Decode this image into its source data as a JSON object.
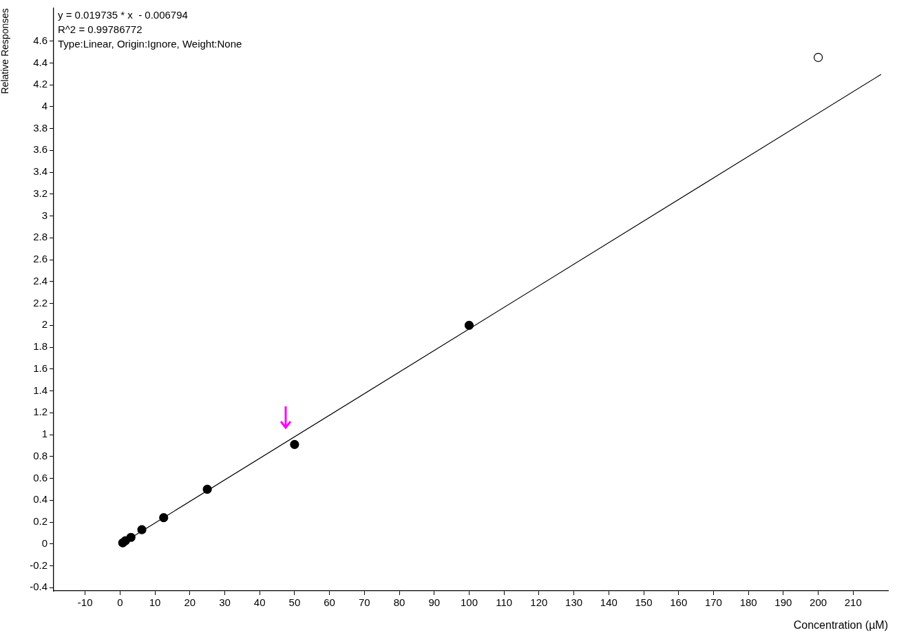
{
  "chart_data": {
    "type": "scatter",
    "xlabel": "Concentration (µM)",
    "ylabel": "Relative Responses",
    "annotations": [
      "y = 0.019735 * x  - 0.006794",
      "R^2 = 0.99786772",
      "Type:Linear, Origin:Ignore, Weight:None"
    ],
    "series": [
      {
        "type": "line",
        "color": "#000000",
        "x": [
          0.78,
          218
        ],
        "values": [
          0.009,
          4.295
        ],
        "marker": "none"
      },
      {
        "color": "#000000",
        "x": [
          0.78,
          1.56,
          3.125,
          6.25,
          12.5,
          25,
          50,
          100
        ],
        "values": [
          0.01,
          0.03,
          0.06,
          0.13,
          0.24,
          0.5,
          0.91,
          2.0
        ]
      },
      {
        "color": "#ffffff",
        "x": [
          200
        ],
        "values": [
          4.45
        ]
      }
    ],
    "marker": "circle",
    "legend": false,
    "xlim": [
      -19,
      220
    ],
    "xticks": [
      -10,
      0,
      10,
      20,
      30,
      40,
      50,
      60,
      70,
      80,
      90,
      100,
      110,
      120,
      130,
      140,
      150,
      160,
      170,
      180,
      190,
      200,
      210
    ],
    "ylim": [
      -0.43,
      4.9
    ],
    "yticks": [
      -0.4,
      -0.2,
      0,
      0.2,
      0.4,
      0.6,
      0.8,
      1,
      1.2,
      1.4,
      1.6,
      1.8,
      2,
      2.2,
      2.4,
      2.6,
      2.8,
      3,
      3.2,
      3.4,
      3.6,
      3.8,
      4,
      4.2,
      4.4,
      4.6
    ]
  }
}
